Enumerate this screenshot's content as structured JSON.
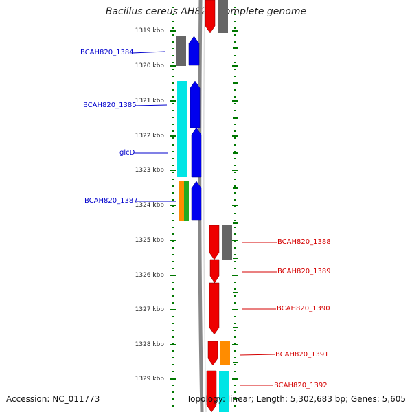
{
  "header": {
    "title": "Bacillus cereus AH820, complete genome"
  },
  "footer": {
    "accession": "Accession: NC_011773",
    "summary": "Topology: linear; Length: 5,302,683 bp; Genes: 5,605"
  },
  "ruler": {
    "ticks": [
      "1319 kbp",
      "1320 kbp",
      "1321 kbp",
      "1322 kbp",
      "1323 kbp",
      "1324 kbp",
      "1325 kbp",
      "1326 kbp",
      "1327 kbp",
      "1328 kbp",
      "1329 kbp"
    ]
  },
  "colors": {
    "forward_gene": "#0000ee",
    "reverse_gene": "#ee0000",
    "forward_label": "#0000cc",
    "reverse_label": "#d40000",
    "grey_feature": "#666666",
    "cyan_feature": "#00e5e5",
    "orange_feature": "#ff8c00",
    "green_feature": "#22aa22",
    "ruler": "#007700"
  },
  "genes": {
    "forward": [
      {
        "label": "BCAH820_1384"
      },
      {
        "label": "BCAH820_1385"
      },
      {
        "label": "glcD"
      },
      {
        "label": "BCAH820_1387"
      }
    ],
    "reverse": [
      {
        "label": "BCAH820_1388"
      },
      {
        "label": "BCAH820_1389"
      },
      {
        "label": "BCAH820_1390"
      },
      {
        "label": "BCAH820_1391"
      },
      {
        "label": "BCAH820_1392"
      }
    ]
  }
}
